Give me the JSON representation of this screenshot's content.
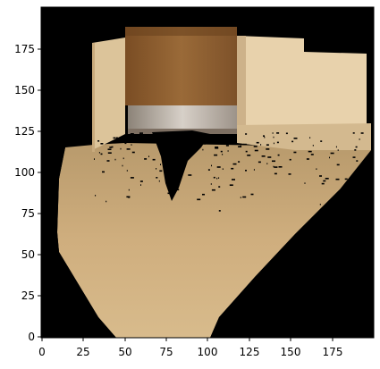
{
  "image": {
    "extent": {
      "x": [
        0,
        200
      ],
      "y": [
        0,
        200
      ]
    },
    "background_color": "#000000",
    "subject": "pixel-rendered indoor scene point cloud reprojection: cabinet/door, walls, floor"
  },
  "axes": {
    "x_ticks": [
      "0",
      "25",
      "50",
      "75",
      "100",
      "125",
      "150",
      "175"
    ],
    "y_ticks": [
      "0",
      "25",
      "50",
      "75",
      "100",
      "125",
      "150",
      "175"
    ]
  },
  "colors": {
    "floor": "#c9a877",
    "floor_light": "#d9bd8e",
    "wall": "#e6cfa6",
    "wall_light": "#efdcb8",
    "door_wood": "#8a5a2b",
    "door_wood_dark": "#6e4420",
    "metal": "#b6aba0",
    "hole": "#000000"
  }
}
